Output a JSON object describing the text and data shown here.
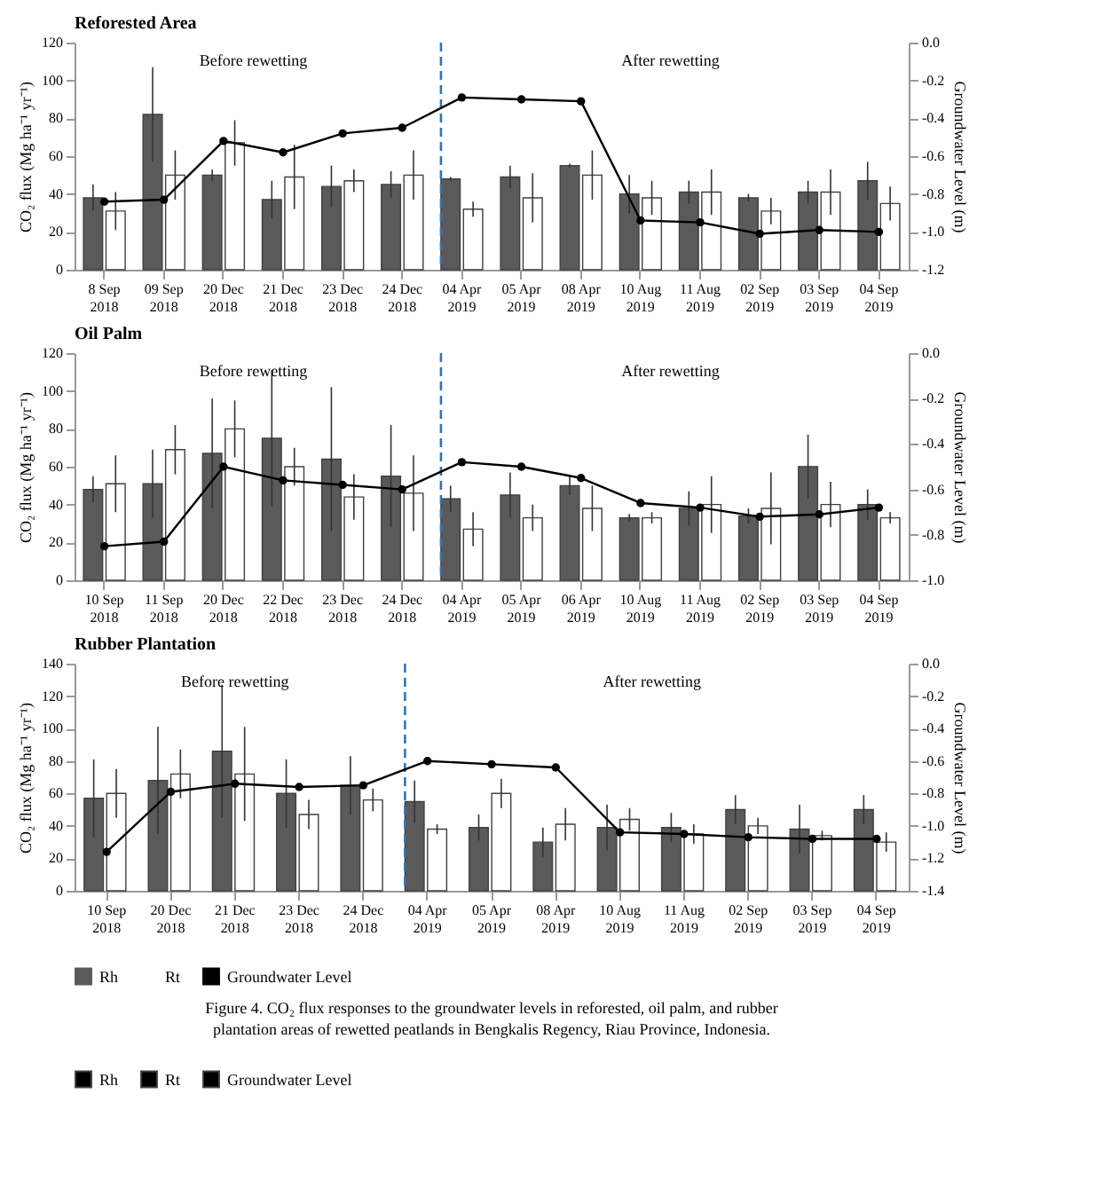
{
  "chart_data": [
    {
      "type": "bar",
      "title": "Reforested Area",
      "ylabel": "CO₂ flux (Mg ha⁻¹ yr⁻¹)",
      "y2label": "Groundwater Level (m)",
      "categories": [
        "8 Sep 2018",
        "09 Sep 2018",
        "20 Dec 2018",
        "21 Dec 2018",
        "23 Dec 2018",
        "24 Dec 2018",
        "04 Apr 2019",
        "05 Apr 2019",
        "08 Apr 2019",
        "10 Aug 2019",
        "11 Aug 2019",
        "02 Sep 2019",
        "03 Sep 2019",
        "04 Sep 2019"
      ],
      "series": [
        {
          "color": "#5a5a5a",
          "values": [
            38,
            82,
            50,
            37,
            44,
            45,
            48,
            49,
            55,
            40,
            41,
            38,
            41,
            47
          ],
          "errors": [
            7,
            25,
            3,
            10,
            11,
            7,
            1,
            6,
            1,
            10,
            6,
            2,
            6,
            10
          ]
        },
        {
          "color": "#ffffff",
          "values": [
            31,
            50,
            67,
            49,
            47,
            50,
            32,
            38,
            50,
            38,
            41,
            31,
            41,
            35
          ],
          "errors": [
            10,
            13,
            12,
            17,
            6,
            13,
            4,
            13,
            13,
            9,
            12,
            7,
            12,
            9
          ]
        },
        {
          "type": "line",
          "axis": "y2",
          "color": "#000000",
          "values": [
            -0.84,
            -0.83,
            -0.52,
            -0.58,
            -0.48,
            -0.45,
            -0.29,
            -0.3,
            -0.31,
            -0.94,
            -0.95,
            -1.01,
            -0.99,
            -1.0
          ]
        }
      ],
      "ylim": [
        0,
        120
      ],
      "yticks": [
        0,
        20,
        40,
        60,
        80,
        100,
        120
      ],
      "y2lim": [
        -1.2,
        0
      ],
      "y2ticks": [
        {
          "value": -1.2,
          "label": "-1.2"
        },
        {
          "value": -1.0,
          "label": "-1.0"
        },
        {
          "value": -0.8,
          "label": "-0.8"
        },
        {
          "value": -0.6,
          "label": "-0.6"
        },
        {
          "value": -0.4,
          "label": "-0.4"
        },
        {
          "value": -0.2,
          "label": "-0.2"
        },
        {
          "value": 0,
          "label": "0.0"
        }
      ],
      "ref_lines": [
        {
          "axis": "x",
          "value": "04 Apr 2019",
          "color": "#2e75b6",
          "line_style": "dashed"
        }
      ],
      "annotations": [
        "Before rewetting",
        "After rewetting"
      ],
      "marker": "circle",
      "line_style": "solid",
      "grid": false
    },
    {
      "type": "bar",
      "title": "Oil Palm",
      "ylabel": "CO₂ flux (Mg ha⁻¹ yr⁻¹)",
      "y2label": "Groundwater Level (m)",
      "categories": [
        "10 Sep 2018",
        "11 Sep 2018",
        "20 Dec 2018",
        "22 Dec 2018",
        "23 Dec 2018",
        "24 Dec 2018",
        "04 Apr 2019",
        "05 Apr 2019",
        "06 Apr 2019",
        "10 Aug 2019",
        "11 Aug 2019",
        "02 Sep 2019",
        "03 Sep 2019",
        "04 Sep 2019"
      ],
      "series": [
        {
          "color": "#5a5a5a",
          "values": [
            48,
            51,
            67,
            75,
            64,
            55,
            43,
            45,
            50,
            33,
            38,
            34,
            60,
            40
          ],
          "errors": [
            7,
            18,
            29,
            36,
            38,
            27,
            7,
            12,
            5,
            2,
            9,
            4,
            17,
            8
          ]
        },
        {
          "color": "#ffffff",
          "values": [
            51,
            69,
            80,
            60,
            44,
            46,
            27,
            33,
            38,
            33,
            40,
            38,
            40,
            33
          ],
          "errors": [
            15,
            13,
            15,
            10,
            12,
            20,
            9,
            7,
            12,
            3,
            15,
            19,
            12,
            3
          ]
        },
        {
          "type": "line",
          "axis": "y2",
          "color": "#000000",
          "values": [
            -0.85,
            -0.83,
            -0.5,
            -0.56,
            -0.58,
            -0.6,
            -0.48,
            -0.5,
            -0.55,
            -0.66,
            -0.68,
            -0.72,
            -0.71,
            -0.68
          ]
        }
      ],
      "ylim": [
        0,
        120
      ],
      "yticks": [
        0,
        20,
        40,
        60,
        80,
        100,
        120
      ],
      "y2lim": [
        -1.0,
        0
      ],
      "y2ticks": [
        {
          "value": -1.0,
          "label": "-1.0"
        },
        {
          "value": -0.8,
          "label": "-0.8"
        },
        {
          "value": -0.6,
          "label": "-0.6"
        },
        {
          "value": -0.4,
          "label": "-0.4"
        },
        {
          "value": -0.2,
          "label": "-0.2"
        },
        {
          "value": 0,
          "label": "0.0"
        }
      ],
      "ref_lines": [
        {
          "axis": "x",
          "value": "04 Apr 2019",
          "color": "#2e75b6",
          "line_style": "dashed"
        }
      ],
      "annotations": [
        "Before rewetting",
        "After rewetting"
      ],
      "marker": "circle",
      "line_style": "solid",
      "grid": false
    },
    {
      "type": "bar",
      "title": "Rubber Plantation",
      "ylabel": "CO₂ flux (Mg ha⁻¹ yr⁻¹)",
      "y2label": "Groundwater Level (m)",
      "categories": [
        "10 Sep 2018",
        "20 Dec 2018",
        "21 Dec 2018",
        "23 Dec 2018",
        "24 Dec 2018",
        "04 Apr 2019",
        "05 Apr 2019",
        "08 Apr 2019",
        "10 Aug 2019",
        "11 Aug 2019",
        "02 Sep 2019",
        "03 Sep 2019",
        "04 Sep 2019"
      ],
      "series": [
        {
          "name": "Rh",
          "color": "#5a5a5a",
          "values": [
            57,
            68,
            86,
            60,
            65,
            55,
            39,
            30,
            39,
            39,
            50,
            38,
            50
          ],
          "errors": [
            24,
            33,
            41,
            21,
            18,
            13,
            8,
            9,
            14,
            9,
            9,
            15,
            9
          ]
        },
        {
          "name": "Rt",
          "color": "#ffffff",
          "values": [
            60,
            72,
            72,
            47,
            56,
            38,
            60,
            41,
            44,
            35,
            40,
            34,
            30
          ],
          "errors": [
            15,
            15,
            29,
            9,
            7,
            3,
            9,
            10,
            7,
            6,
            5,
            3,
            6
          ]
        },
        {
          "name": "Groundwater Level",
          "type": "line",
          "axis": "y2",
          "color": "#000000",
          "values": [
            -1.16,
            -0.79,
            -0.74,
            -0.76,
            -0.75,
            -0.6,
            -0.62,
            -0.64,
            -1.04,
            -1.05,
            -1.07,
            -1.08,
            -1.08
          ]
        }
      ],
      "ylim": [
        0,
        140
      ],
      "yticks": [
        0,
        20,
        40,
        60,
        80,
        100,
        120,
        140
      ],
      "y2lim": [
        -1.4,
        0
      ],
      "y2ticks": [
        {
          "value": -1.4,
          "label": "-1.4"
        },
        {
          "value": -1.2,
          "label": "-1.2"
        },
        {
          "value": -1.0,
          "label": "-1.0"
        },
        {
          "value": -0.8,
          "label": "-0.8"
        },
        {
          "value": -0.6,
          "label": "-0.6"
        },
        {
          "value": -0.4,
          "label": "-0.4"
        },
        {
          "value": -0.2,
          "label": "-0.2"
        },
        {
          "value": 0,
          "label": "0.0"
        }
      ],
      "ref_lines": [
        {
          "axis": "x",
          "value": "04 Apr 2019",
          "color": "#2e75b6",
          "line_style": "dashed"
        }
      ],
      "annotations": [
        "Before rewetting",
        "After rewetting",
        "Figure 4. CO₂ flux responses to the groundwater levels in reforested, oil palm, and rubber plantation areas of rewetted peatlands in Bengkalis Regency, Riau Province, Indonesia."
      ],
      "marker": "circle",
      "line_style": "solid",
      "grid": false,
      "legend": "bottom"
    }
  ]
}
